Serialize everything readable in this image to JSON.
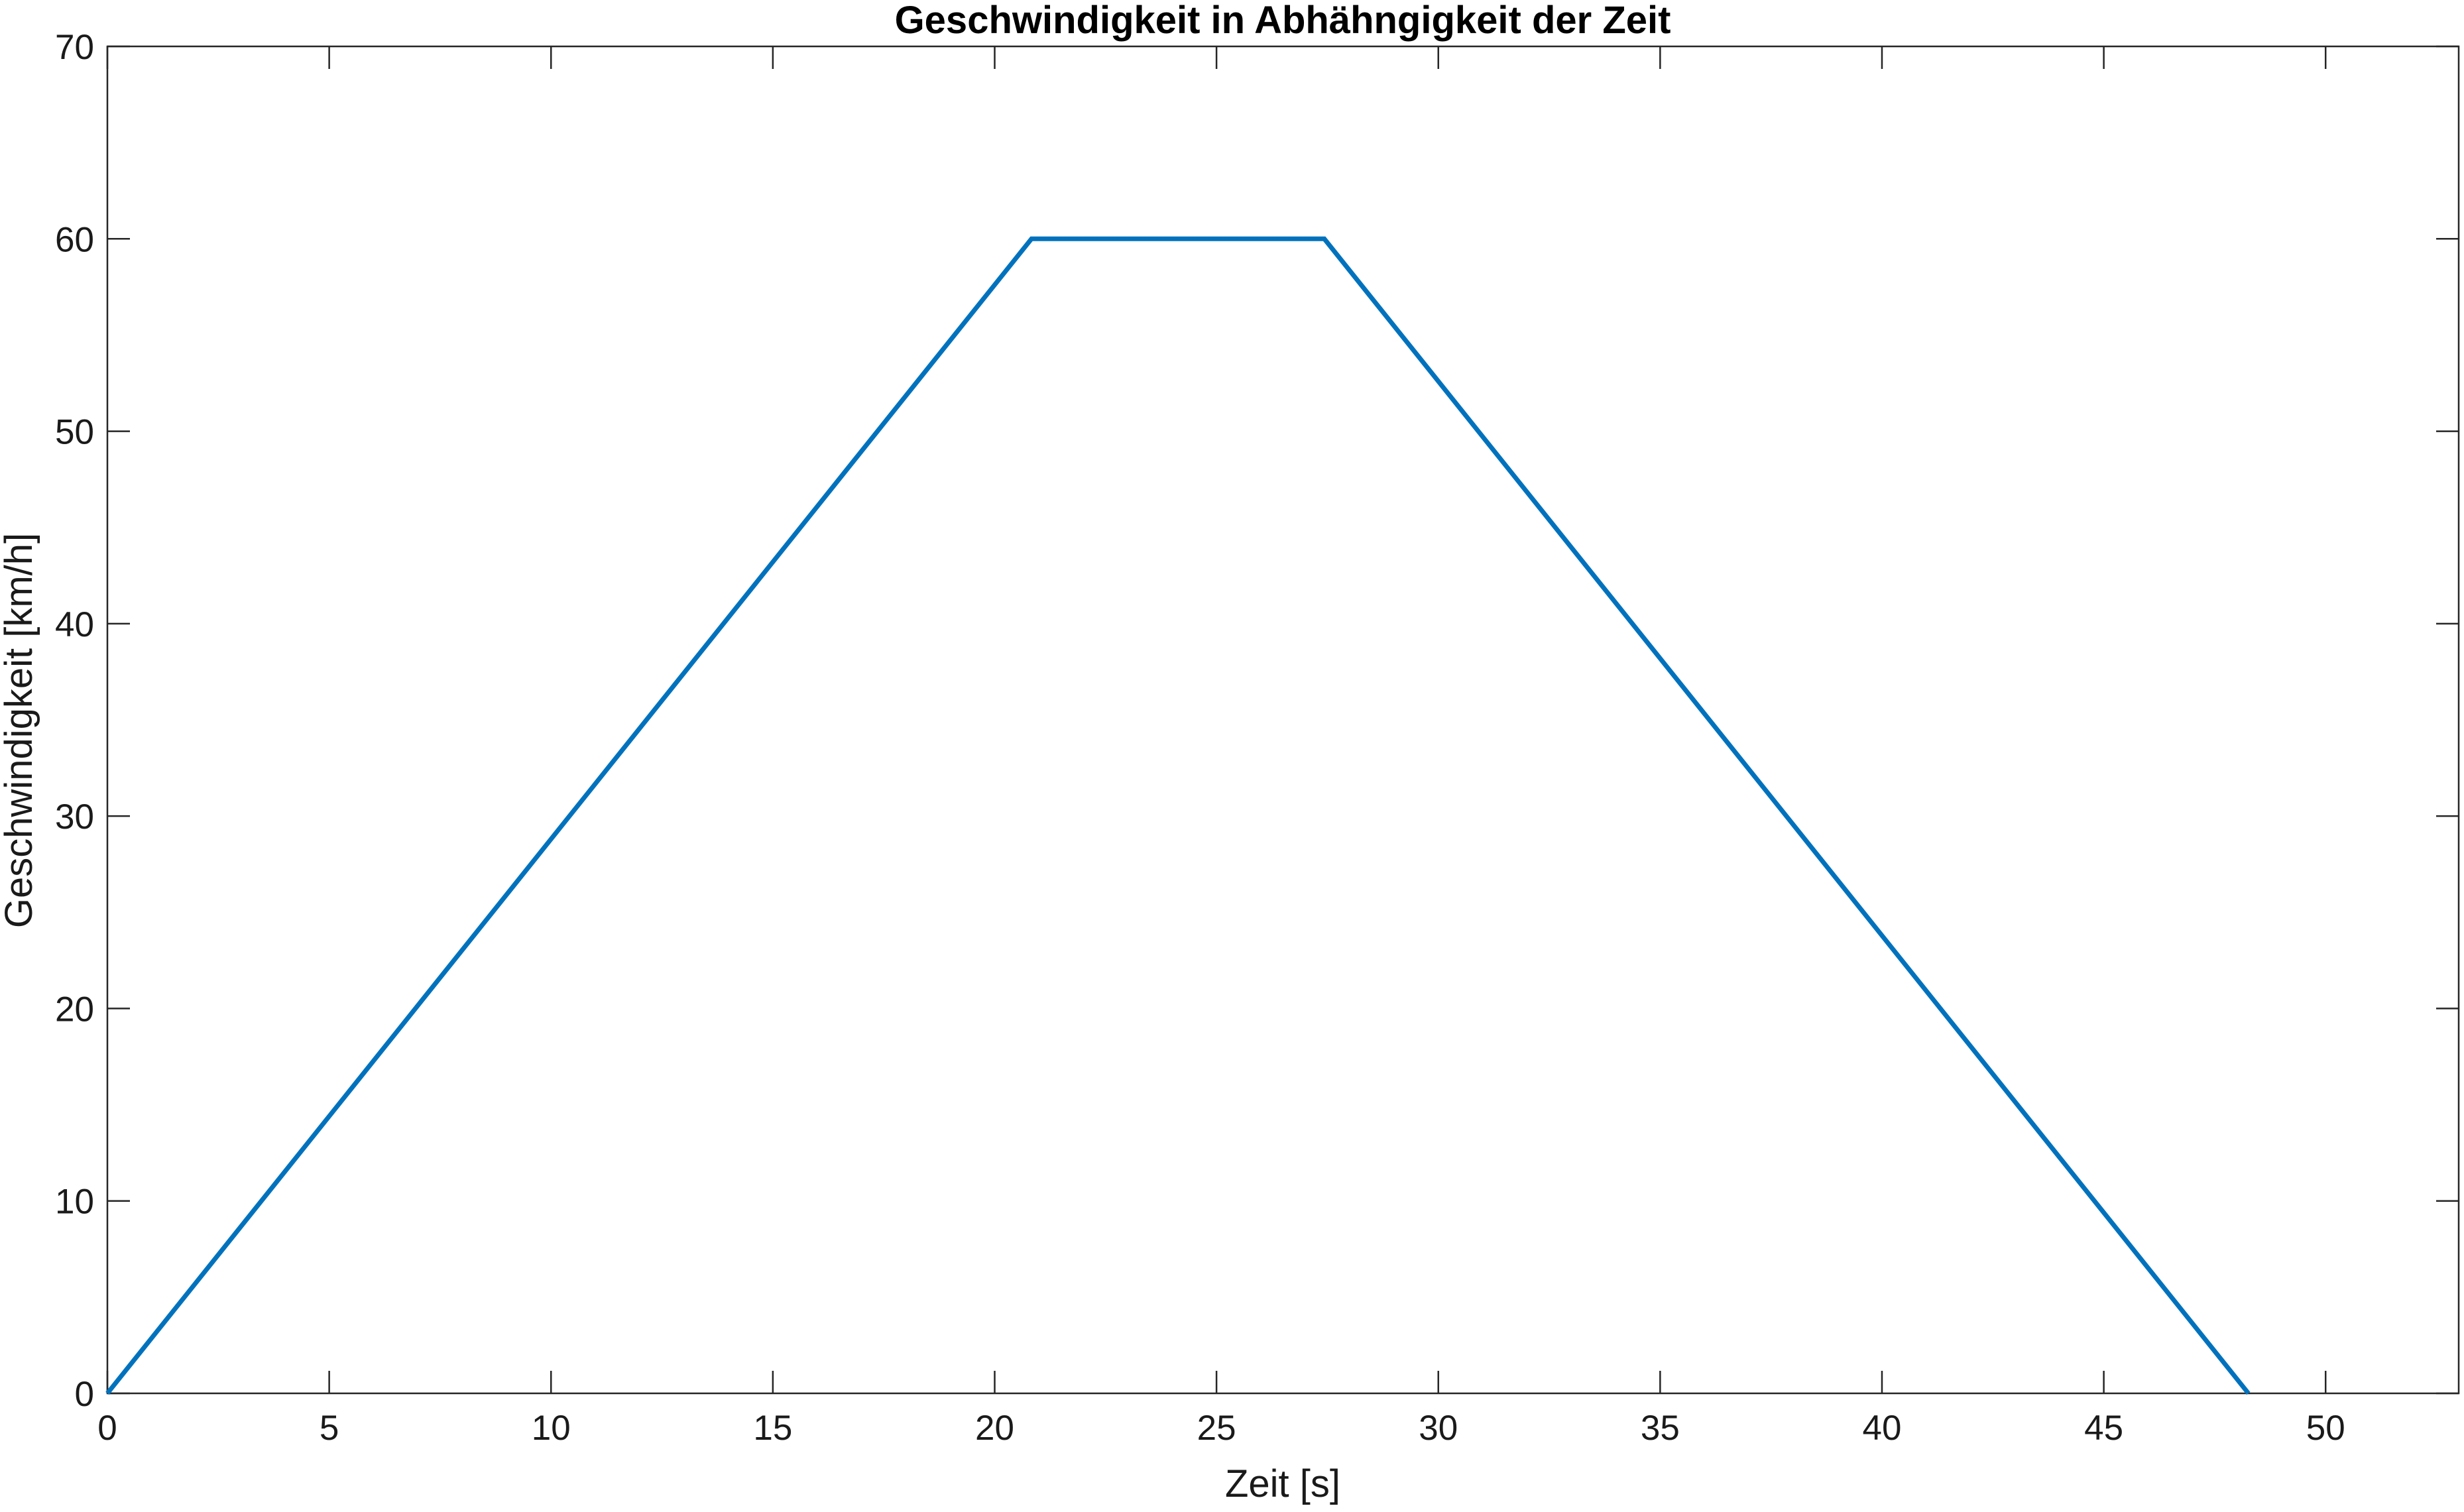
{
  "chart_data": {
    "type": "line",
    "title": "Geschwindigkeit in Abhähngigkeit der Zeit",
    "xlabel": "Zeit [s]",
    "ylabel": "Geschwindigkeit [km/h]",
    "xlim": [
      0,
      53
    ],
    "ylim": [
      0,
      70
    ],
    "xticks": [
      0,
      5,
      10,
      15,
      20,
      25,
      30,
      35,
      40,
      45,
      50
    ],
    "yticks": [
      0,
      10,
      20,
      30,
      40,
      50,
      60,
      70
    ],
    "grid": false,
    "series": [
      {
        "color": "#0072BD",
        "x": [
          0,
          20.83,
          27.43,
          48.26
        ],
        "y": [
          0,
          60,
          60,
          0
        ]
      }
    ]
  }
}
